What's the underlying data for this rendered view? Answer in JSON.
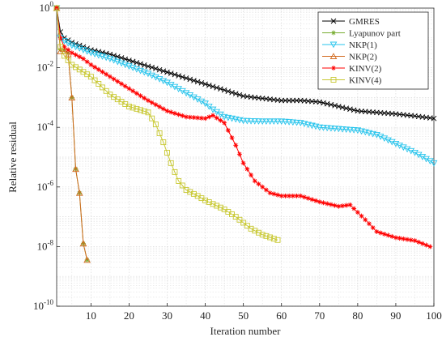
{
  "chart_data": {
    "type": "line",
    "xlabel": "Iteration number",
    "ylabel": "Relative residual",
    "xlim": [
      1,
      100
    ],
    "ylim_log10": [
      -10,
      0
    ],
    "yscale": "log",
    "grid": true,
    "legend_position": "top-right",
    "x_ticks": [
      10,
      20,
      30,
      40,
      50,
      60,
      70,
      80,
      90,
      100
    ],
    "y_ticks": [
      {
        "base": "10",
        "exp": "0"
      },
      {
        "base": "10",
        "exp": "-2"
      },
      {
        "base": "10",
        "exp": "-4"
      },
      {
        "base": "10",
        "exp": "-6"
      },
      {
        "base": "10",
        "exp": "-8"
      },
      {
        "base": "10",
        "exp": "-10"
      }
    ],
    "series": [
      {
        "name": "GMRES",
        "color": "#000000",
        "marker": "x",
        "points_log10": [
          [
            1,
            0
          ],
          [
            2,
            -0.8
          ],
          [
            3,
            -1.0
          ],
          [
            5,
            -1.15
          ],
          [
            8,
            -1.3
          ],
          [
            10,
            -1.4
          ],
          [
            15,
            -1.55
          ],
          [
            20,
            -1.75
          ],
          [
            25,
            -1.95
          ],
          [
            30,
            -2.15
          ],
          [
            35,
            -2.35
          ],
          [
            40,
            -2.55
          ],
          [
            45,
            -2.75
          ],
          [
            50,
            -2.95
          ],
          [
            53,
            -3.0
          ],
          [
            60,
            -3.1
          ],
          [
            65,
            -3.1
          ],
          [
            70,
            -3.15
          ],
          [
            75,
            -3.3
          ],
          [
            80,
            -3.45
          ],
          [
            85,
            -3.5
          ],
          [
            90,
            -3.55
          ],
          [
            95,
            -3.62
          ],
          [
            100,
            -3.7
          ]
        ]
      },
      {
        "name": "Lyapunov part",
        "color": "#77ac30",
        "marker": "star",
        "points_log10": [
          [
            1,
            0
          ],
          [
            2,
            -1.4
          ],
          [
            3,
            -1.4
          ],
          [
            4,
            -1.5
          ],
          [
            5,
            -3.0
          ],
          [
            6,
            -5.4
          ],
          [
            7,
            -6.2
          ],
          [
            8,
            -7.9
          ],
          [
            9,
            -8.45
          ]
        ]
      },
      {
        "name": "NKP(1)",
        "color": "#27c4ec",
        "marker": "triangle-down",
        "points_log10": [
          [
            1,
            0
          ],
          [
            2,
            -1.0
          ],
          [
            3,
            -1.1
          ],
          [
            5,
            -1.25
          ],
          [
            8,
            -1.4
          ],
          [
            10,
            -1.5
          ],
          [
            15,
            -1.7
          ],
          [
            20,
            -1.95
          ],
          [
            25,
            -2.2
          ],
          [
            30,
            -2.5
          ],
          [
            35,
            -2.85
          ],
          [
            40,
            -3.2
          ],
          [
            42,
            -3.4
          ],
          [
            45,
            -3.65
          ],
          [
            50,
            -3.78
          ],
          [
            55,
            -3.8
          ],
          [
            60,
            -3.8
          ],
          [
            65,
            -3.85
          ],
          [
            70,
            -4.0
          ],
          [
            75,
            -4.05
          ],
          [
            80,
            -4.1
          ],
          [
            85,
            -4.25
          ],
          [
            90,
            -4.55
          ],
          [
            95,
            -4.85
          ],
          [
            100,
            -5.2
          ]
        ]
      },
      {
        "name": "NKP(2)",
        "color": "#d2691e",
        "marker": "triangle-up",
        "points_log10": [
          [
            1,
            0
          ],
          [
            2,
            -1.45
          ],
          [
            3,
            -1.45
          ],
          [
            4,
            -1.55
          ],
          [
            5,
            -3.0
          ],
          [
            6,
            -5.4
          ],
          [
            7,
            -6.2
          ],
          [
            8,
            -7.9
          ],
          [
            9,
            -8.45
          ]
        ]
      },
      {
        "name": "KINV(2)",
        "color": "#ff0000",
        "marker": "star",
        "points_log10": [
          [
            1,
            0
          ],
          [
            2,
            -1.0
          ],
          [
            3,
            -1.3
          ],
          [
            5,
            -1.5
          ],
          [
            8,
            -1.7
          ],
          [
            10,
            -1.9
          ],
          [
            15,
            -2.3
          ],
          [
            20,
            -2.7
          ],
          [
            25,
            -3.1
          ],
          [
            30,
            -3.45
          ],
          [
            35,
            -3.65
          ],
          [
            40,
            -3.7
          ],
          [
            42,
            -3.6
          ],
          [
            45,
            -3.85
          ],
          [
            48,
            -4.6
          ],
          [
            50,
            -5.2
          ],
          [
            53,
            -5.8
          ],
          [
            57,
            -6.2
          ],
          [
            60,
            -6.3
          ],
          [
            65,
            -6.3
          ],
          [
            70,
            -6.5
          ],
          [
            75,
            -6.65
          ],
          [
            78,
            -6.6
          ],
          [
            82,
            -7.1
          ],
          [
            85,
            -7.5
          ],
          [
            90,
            -7.7
          ],
          [
            95,
            -7.8
          ],
          [
            99,
            -8.0
          ]
        ]
      },
      {
        "name": "KINV(4)",
        "color": "#c8c832",
        "marker": "square",
        "points_log10": [
          [
            1,
            0
          ],
          [
            2,
            -1.3
          ],
          [
            3,
            -1.6
          ],
          [
            5,
            -1.9
          ],
          [
            10,
            -2.3
          ],
          [
            15,
            -2.9
          ],
          [
            20,
            -3.3
          ],
          [
            25,
            -3.5
          ],
          [
            27,
            -3.9
          ],
          [
            29,
            -4.5
          ],
          [
            31,
            -5.2
          ],
          [
            33,
            -5.8
          ],
          [
            35,
            -6.1
          ],
          [
            38,
            -6.3
          ],
          [
            40,
            -6.45
          ],
          [
            45,
            -6.75
          ],
          [
            48,
            -7.0
          ],
          [
            52,
            -7.4
          ],
          [
            55,
            -7.6
          ],
          [
            59,
            -7.78
          ]
        ]
      }
    ]
  }
}
